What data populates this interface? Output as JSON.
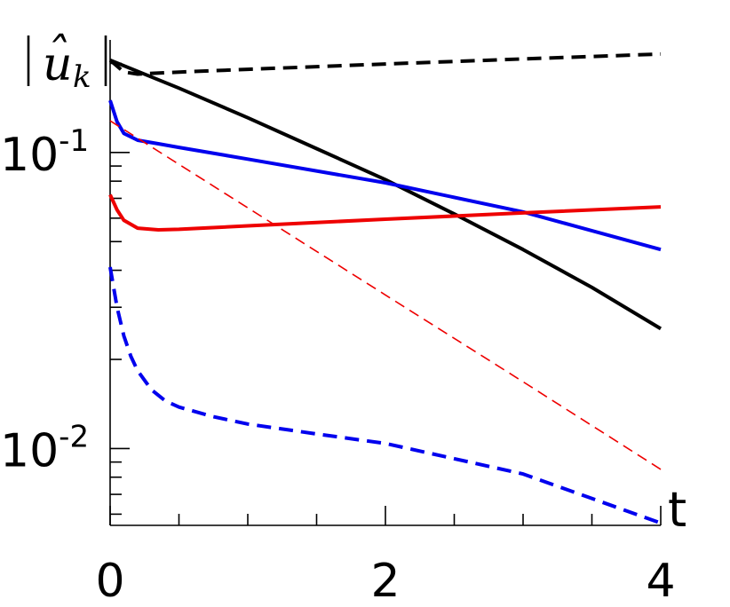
{
  "chart_data": {
    "type": "line",
    "xlabel": "t",
    "ylabel": "|û_k|",
    "ylabel_parts": {
      "hat": "ˆ",
      "base": "u",
      "sub": "k"
    },
    "xlim": [
      0,
      4
    ],
    "ylim": [
      0.0055,
      0.24
    ],
    "yscale": "log",
    "grid": false,
    "x_ticks": [
      {
        "value": 0,
        "label": "0"
      },
      {
        "value": 2,
        "label": "2"
      },
      {
        "value": 4,
        "label": "4"
      }
    ],
    "x_minor_ticks": [
      0.5,
      1,
      1.5,
      2.5,
      3,
      3.5
    ],
    "y_ticks": [
      {
        "value": 0.1,
        "base": "10",
        "exp": "-1"
      },
      {
        "value": 0.01,
        "base": "10",
        "exp": "-2"
      }
    ],
    "y_minor_ticks": [
      0.006,
      0.007,
      0.008,
      0.009,
      0.02,
      0.03,
      0.04,
      0.05,
      0.06,
      0.07,
      0.08,
      0.09,
      0.2
    ],
    "series": [
      {
        "color": "#000000",
        "dash": "dashed",
        "width": 4,
        "x": [
          0,
          0.1,
          0.2,
          0.4,
          1,
          2,
          3,
          4
        ],
        "y": [
          0.205,
          0.187,
          0.184,
          0.186,
          0.191,
          0.199,
          0.207,
          0.215
        ]
      },
      {
        "color": "#000000",
        "dash": "solid",
        "width": 4,
        "x": [
          0,
          0.5,
          1,
          1.5,
          2,
          2.5,
          3,
          3.5,
          4
        ],
        "y": [
          0.205,
          0.165,
          0.131,
          0.103,
          0.081,
          0.062,
          0.047,
          0.035,
          0.0254
        ]
      },
      {
        "color": "#0000ee",
        "dash": "solid",
        "width": 4,
        "x": [
          0,
          0.05,
          0.1,
          0.2,
          0.35,
          0.5,
          1,
          2,
          3,
          4
        ],
        "y": [
          0.15,
          0.127,
          0.116,
          0.11,
          0.107,
          0.104,
          0.095,
          0.079,
          0.063,
          0.047
        ]
      },
      {
        "color": "#ee0000",
        "dash": "solid",
        "width": 4,
        "x": [
          0,
          0.05,
          0.1,
          0.2,
          0.35,
          0.5,
          1,
          2,
          3,
          4
        ],
        "y": [
          0.072,
          0.064,
          0.059,
          0.0555,
          0.0548,
          0.055,
          0.0565,
          0.0595,
          0.0625,
          0.0655
        ]
      },
      {
        "color": "#ee0000",
        "dash": "thin-dashed",
        "width": 1.6,
        "x": [
          0,
          1,
          2,
          3,
          4
        ],
        "y": [
          0.128,
          0.065,
          0.033,
          0.0168,
          0.0085
        ]
      },
      {
        "color": "#0000ee",
        "dash": "dashed",
        "width": 4,
        "x": [
          0,
          0.05,
          0.1,
          0.15,
          0.2,
          0.3,
          0.4,
          0.5,
          0.75,
          1,
          1.5,
          2,
          3,
          4
        ],
        "y": [
          0.041,
          0.03,
          0.024,
          0.0205,
          0.0183,
          0.0158,
          0.0145,
          0.0138,
          0.0128,
          0.0121,
          0.0112,
          0.0104,
          0.0082,
          0.0056
        ]
      }
    ]
  }
}
